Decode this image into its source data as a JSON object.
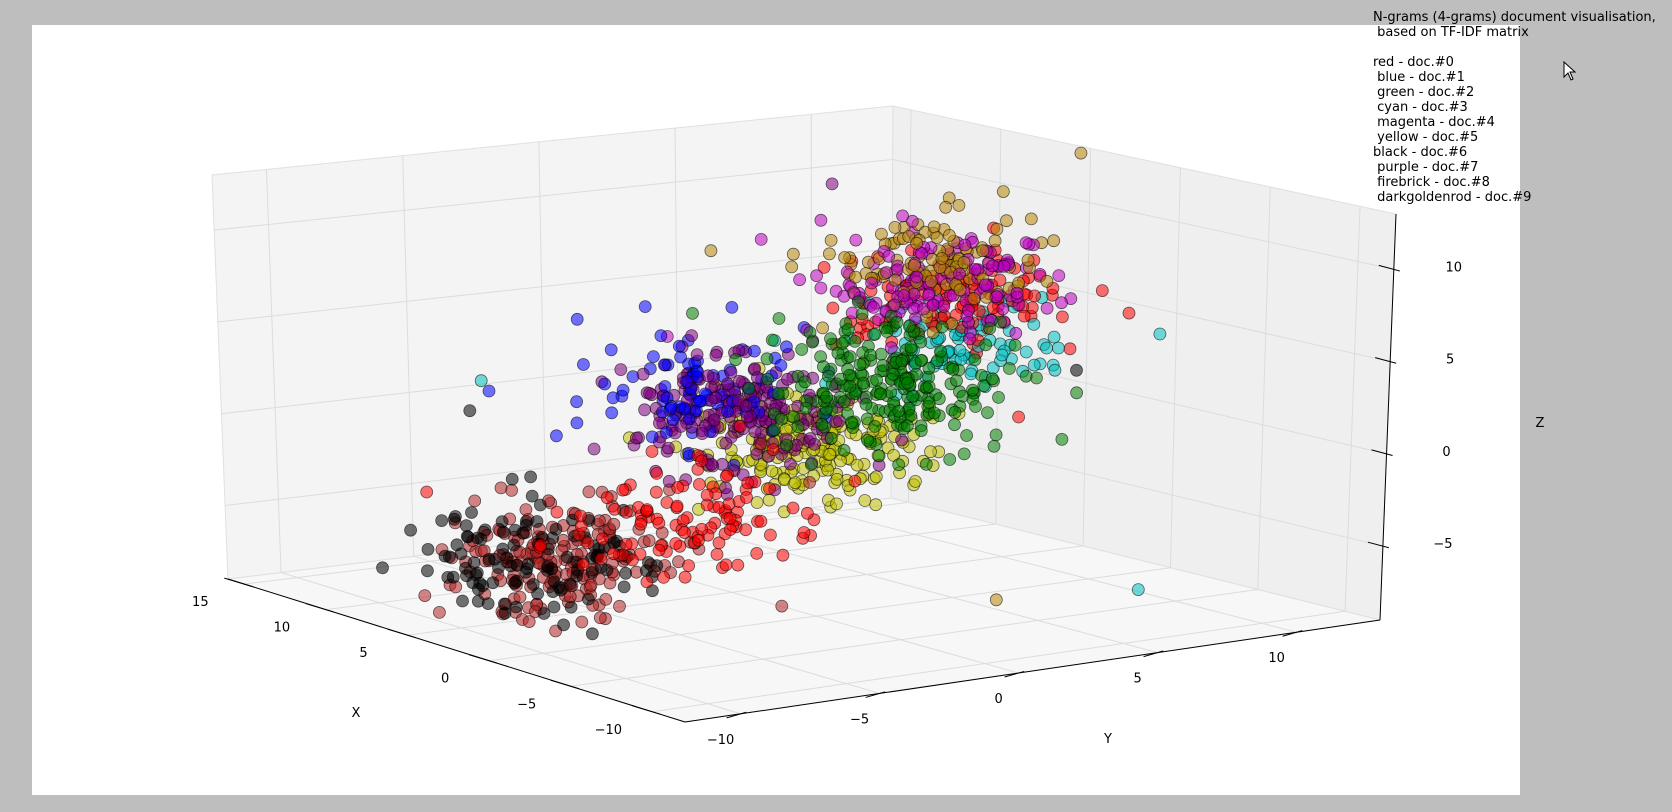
{
  "chart_data": {
    "type": "scatter3d",
    "title_lines": [
      "N-grams (4-grams) document visualisation,",
      " based on TF-IDF matrix",
      "",
      "red - doc.#0",
      " blue - doc.#1",
      " green - doc.#2",
      " cyan - doc.#3",
      " magenta - doc.#4",
      " yellow - doc.#5",
      "black - doc.#6",
      " purple - doc.#7",
      " firebrick - doc.#8",
      " darkgoldenrod - doc.#9"
    ],
    "xlabel": "X",
    "ylabel": "Y",
    "zlabel": "Z",
    "xticks": [
      "−10",
      "−5",
      "0",
      "5",
      "10",
      "15"
    ],
    "yticks": [
      "−10",
      "−5",
      "0",
      "5",
      "10"
    ],
    "zticks": [
      "−5",
      "0",
      "5",
      "10"
    ],
    "xlim": [
      -12,
      16
    ],
    "ylim": [
      -12,
      13
    ],
    "zlim": [
      -9,
      13
    ],
    "grid": true,
    "series": [
      {
        "name": "doc.#0",
        "color": "#ff0000",
        "clusters": [
          {
            "center": [
              -9,
              -10,
              -1
            ],
            "count": 110
          },
          {
            "center": [
              6,
              9,
              5
            ],
            "count": 120
          }
        ]
      },
      {
        "name": "doc.#1",
        "color": "#0000ff",
        "clusters": [
          {
            "center": [
              3,
              -2,
              2
            ],
            "count": 90
          }
        ]
      },
      {
        "name": "doc.#2",
        "color": "#008000",
        "clusters": [
          {
            "center": [
              -11,
              -4,
              5
            ],
            "count": 230
          }
        ]
      },
      {
        "name": "doc.#3",
        "color": "#00bfbf",
        "clusters": [
          {
            "center": [
              6,
              9,
              2.5
            ],
            "count": 90
          }
        ]
      },
      {
        "name": "doc.#4",
        "color": "#bf00bf",
        "clusters": [
          {
            "center": [
              -2,
              3,
              8
            ],
            "count": 140
          }
        ]
      },
      {
        "name": "doc.#5",
        "color": "#bfbf00",
        "clusters": [
          {
            "center": [
              8,
              5,
              -3
            ],
            "count": 200
          }
        ]
      },
      {
        "name": "doc.#6",
        "color": "#000000",
        "clusters": [
          {
            "center": [
              2,
              -9,
              -5
            ],
            "count": 110
          }
        ]
      },
      {
        "name": "doc.#7",
        "color": "#800080",
        "clusters": [
          {
            "center": [
              3,
              -1,
              1
            ],
            "count": 210
          }
        ]
      },
      {
        "name": "doc.#8",
        "color": "#b22222",
        "clusters": [
          {
            "center": [
              7,
              -5,
              -7
            ],
            "count": 190
          }
        ]
      },
      {
        "name": "doc.#9",
        "color": "#b8860b",
        "clusters": [
          {
            "center": [
              -2,
              3,
              9
            ],
            "count": 120
          }
        ]
      }
    ]
  }
}
